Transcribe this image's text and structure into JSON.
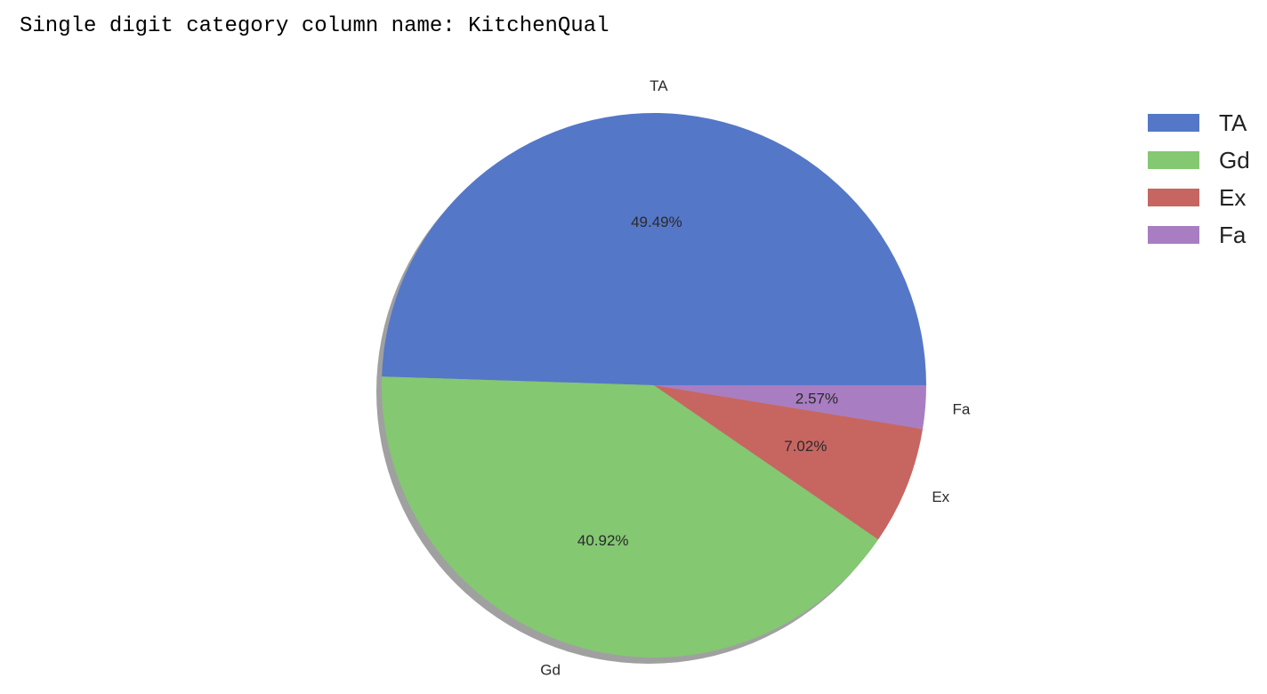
{
  "output": {
    "text": "Single digit category column name: KitchenQual"
  },
  "chart_data": {
    "type": "pie",
    "title": "",
    "categories": [
      "TA",
      "Gd",
      "Ex",
      "Fa"
    ],
    "values": [
      49.49,
      40.92,
      7.02,
      2.57
    ],
    "value_labels": [
      "49.49%",
      "40.92%",
      "7.02%",
      "2.57%"
    ],
    "colors": [
      "#5577c8",
      "#84c872",
      "#c76661",
      "#a97dc2"
    ],
    "start_angle_deg": 0,
    "direction": "counterclockwise",
    "shadow": true,
    "legend": {
      "placement": "top-right",
      "entries": [
        "TA",
        "Gd",
        "Ex",
        "Fa"
      ]
    }
  }
}
